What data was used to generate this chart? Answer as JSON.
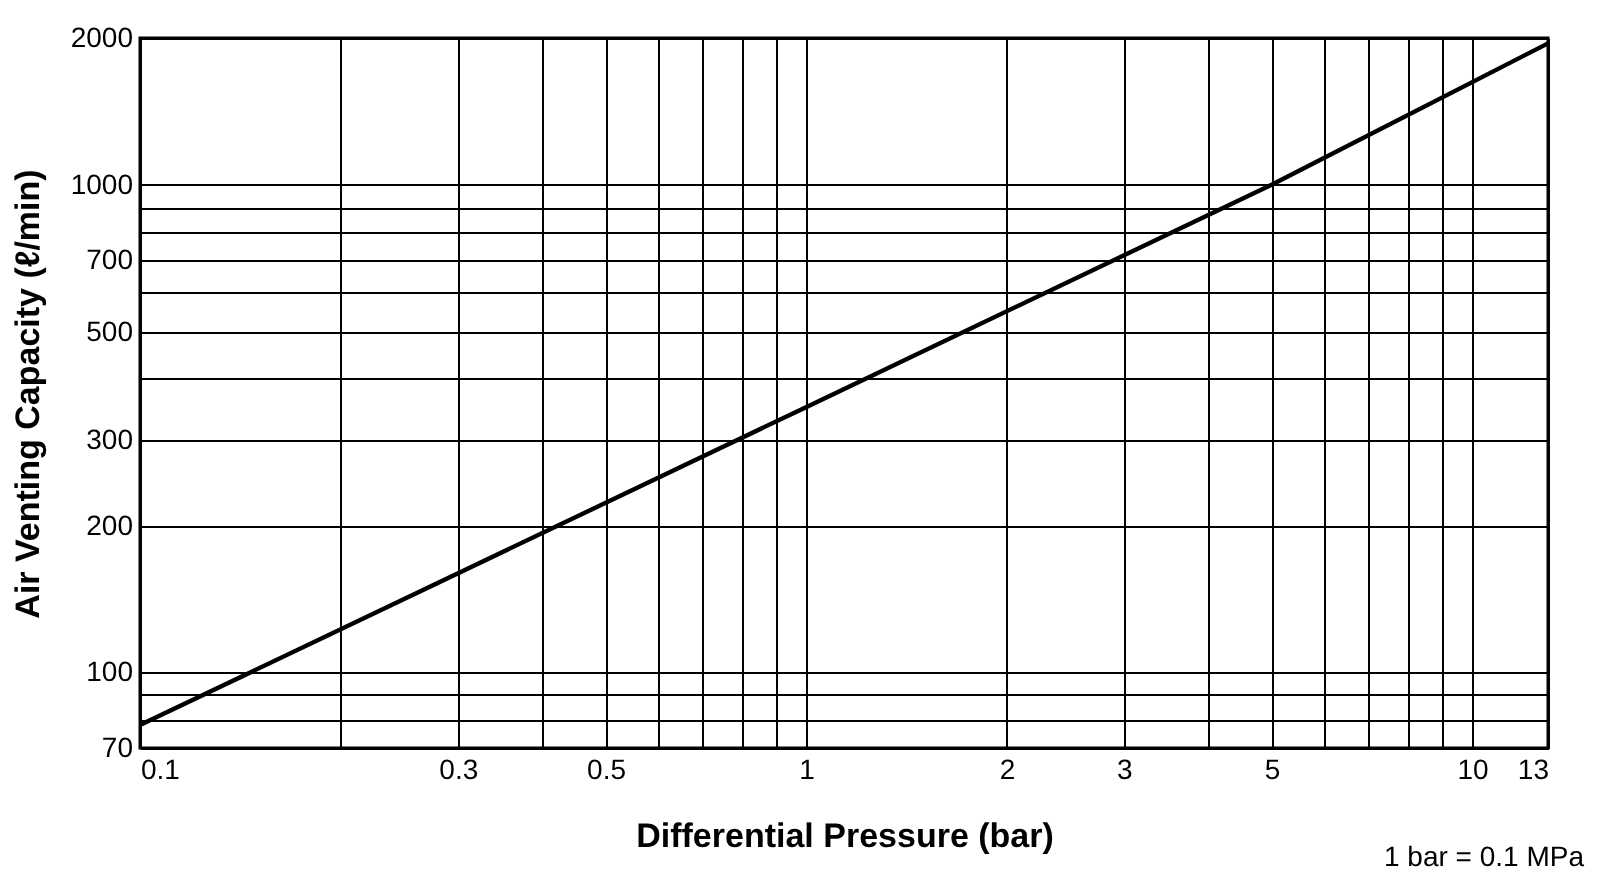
{
  "chart_data": {
    "type": "line",
    "xlabel": "Differential Pressure (bar)",
    "ylabel": "Air Venting Capacity (ℓ/min)",
    "log": "xy",
    "grid": true,
    "marker": "none",
    "line_style": "solid",
    "x": [
      0.1,
      1,
      5,
      13
    ],
    "series": [
      {
        "color": "#000000",
        "values": [
          78,
          350,
          1000,
          1950
        ]
      }
    ],
    "xlim": [
      0.1,
      13
    ],
    "xticks": [
      0.1,
      {
        "value": 0.2,
        "label": null
      },
      0.3,
      {
        "value": 0.4,
        "label": null
      },
      0.5,
      {
        "value": 0.6,
        "label": null
      },
      {
        "value": 0.7,
        "label": null
      },
      {
        "value": 0.8,
        "label": null
      },
      {
        "value": 0.9,
        "label": null
      },
      1,
      2,
      3,
      {
        "value": 4,
        "label": null
      },
      5,
      {
        "value": 6,
        "label": null
      },
      {
        "value": 7,
        "label": null
      },
      {
        "value": 8,
        "label": null
      },
      {
        "value": 9,
        "label": null
      },
      10,
      13
    ],
    "ylim": [
      70,
      2000
    ],
    "yticks": [
      70,
      {
        "value": 80,
        "label": null
      },
      {
        "value": 90,
        "label": null
      },
      100,
      200,
      300,
      {
        "value": 400,
        "label": null
      },
      500,
      {
        "value": 600,
        "label": null
      },
      700,
      {
        "value": 800,
        "label": null
      },
      {
        "value": 900,
        "label": null
      },
      1000,
      2000
    ],
    "annotations": [
      "1 bar = 0.1 MPa"
    ]
  }
}
